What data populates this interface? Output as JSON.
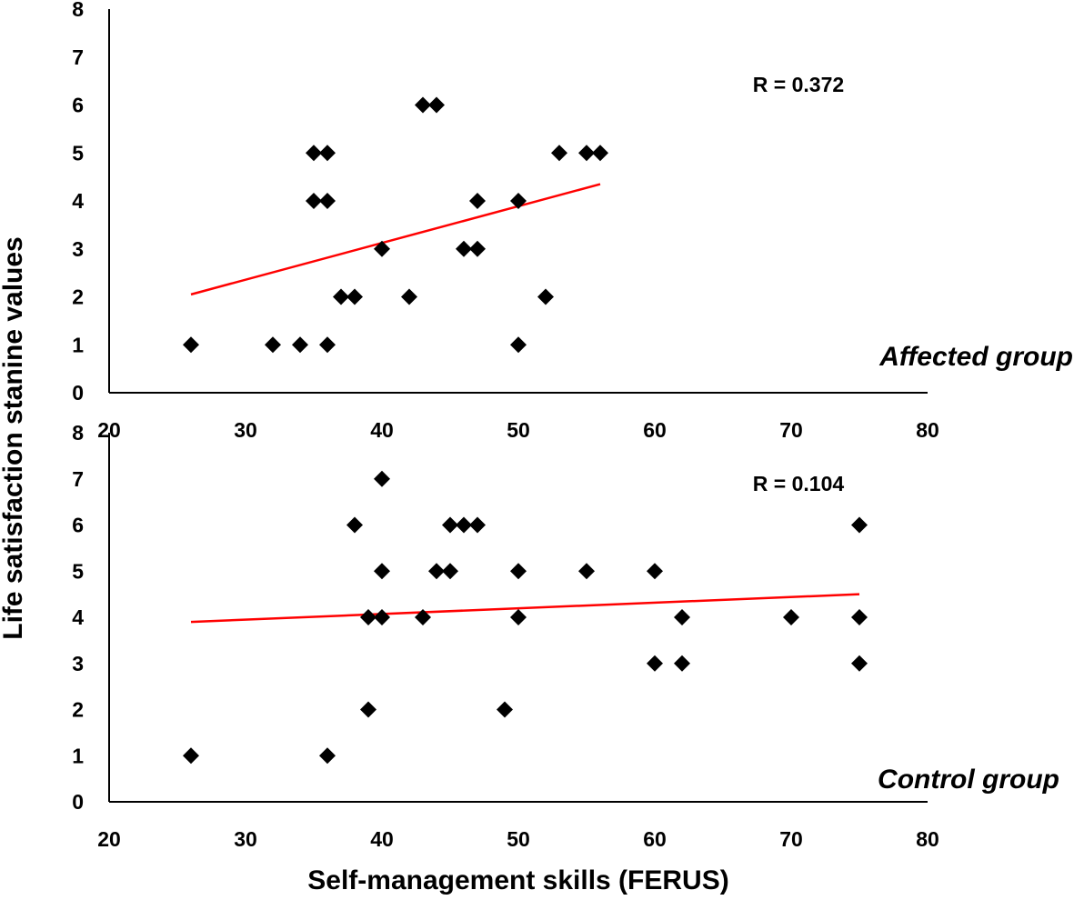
{
  "y_axis_title": "Life satisfaction stanine values",
  "x_axis_title": "Self-management skills (FERUS)",
  "chart_data": [
    {
      "type": "scatter",
      "group_label": "Affected group",
      "annotation": "R = 0.372",
      "xlim": [
        20,
        80
      ],
      "ylim": [
        0,
        8
      ],
      "x_ticks": [
        "20",
        "30",
        "40",
        "50",
        "60",
        "70",
        "80"
      ],
      "y_ticks": [
        "0",
        "1",
        "2",
        "3",
        "4",
        "5",
        "6",
        "7",
        "8"
      ],
      "marker": "diamond",
      "marker_color": "#000000",
      "trendline_color": "#ff0000",
      "trendline": {
        "x": [
          26,
          56
        ],
        "y": [
          2.05,
          4.35
        ]
      },
      "points": [
        {
          "x": 26,
          "y": 1
        },
        {
          "x": 32,
          "y": 1
        },
        {
          "x": 34,
          "y": 1
        },
        {
          "x": 36,
          "y": 1
        },
        {
          "x": 35,
          "y": 4
        },
        {
          "x": 36,
          "y": 4
        },
        {
          "x": 35,
          "y": 5
        },
        {
          "x": 36,
          "y": 5
        },
        {
          "x": 37,
          "y": 2
        },
        {
          "x": 38,
          "y": 2
        },
        {
          "x": 40,
          "y": 3
        },
        {
          "x": 42,
          "y": 2
        },
        {
          "x": 43,
          "y": 6
        },
        {
          "x": 44,
          "y": 6
        },
        {
          "x": 46,
          "y": 3
        },
        {
          "x": 47,
          "y": 3
        },
        {
          "x": 47,
          "y": 4
        },
        {
          "x": 50,
          "y": 4
        },
        {
          "x": 50,
          "y": 1
        },
        {
          "x": 52,
          "y": 2
        },
        {
          "x": 53,
          "y": 5
        },
        {
          "x": 55,
          "y": 5
        },
        {
          "x": 56,
          "y": 5
        }
      ]
    },
    {
      "type": "scatter",
      "group_label": "Control group",
      "annotation": "R = 0.104",
      "xlim": [
        20,
        80
      ],
      "ylim": [
        0,
        8
      ],
      "x_ticks": [
        "20",
        "30",
        "40",
        "50",
        "60",
        "70",
        "80"
      ],
      "y_ticks": [
        "0",
        "1",
        "2",
        "3",
        "4",
        "5",
        "6",
        "7",
        "8"
      ],
      "marker": "diamond",
      "marker_color": "#000000",
      "trendline_color": "#ff0000",
      "trendline": {
        "x": [
          26,
          75
        ],
        "y": [
          3.9,
          4.5
        ]
      },
      "points": [
        {
          "x": 26,
          "y": 1
        },
        {
          "x": 36,
          "y": 1
        },
        {
          "x": 39,
          "y": 2
        },
        {
          "x": 49,
          "y": 2
        },
        {
          "x": 38,
          "y": 6
        },
        {
          "x": 40,
          "y": 7
        },
        {
          "x": 39,
          "y": 4
        },
        {
          "x": 40,
          "y": 4
        },
        {
          "x": 40,
          "y": 5
        },
        {
          "x": 43,
          "y": 4
        },
        {
          "x": 44,
          "y": 5
        },
        {
          "x": 45,
          "y": 5
        },
        {
          "x": 45,
          "y": 6
        },
        {
          "x": 46,
          "y": 6
        },
        {
          "x": 47,
          "y": 6
        },
        {
          "x": 50,
          "y": 5
        },
        {
          "x": 50,
          "y": 4
        },
        {
          "x": 55,
          "y": 5
        },
        {
          "x": 60,
          "y": 5
        },
        {
          "x": 60,
          "y": 3
        },
        {
          "x": 62,
          "y": 4
        },
        {
          "x": 62,
          "y": 3
        },
        {
          "x": 70,
          "y": 4
        },
        {
          "x": 75,
          "y": 6
        },
        {
          "x": 75,
          "y": 4
        },
        {
          "x": 75,
          "y": 3
        }
      ]
    }
  ]
}
